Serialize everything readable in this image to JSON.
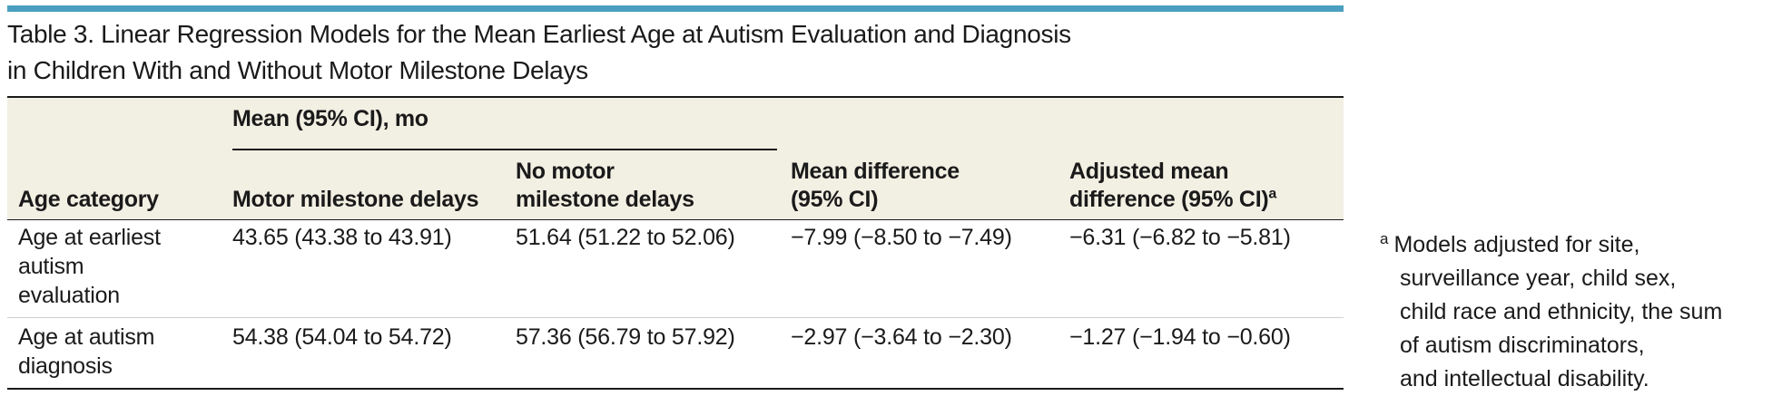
{
  "title_line1": "Table 3. Linear Regression Models for the Mean Earliest Age at Autism Evaluation and Diagnosis",
  "title_line2": "in Children With and Without Motor Milestone Delays",
  "header": {
    "age_category": "Age category",
    "group_label": "Mean (95% CI), mo",
    "motor_delays": "Motor milestone delays",
    "no_motor_line1": "No motor",
    "no_motor_line2": "milestone delays",
    "mean_diff_line1": "Mean difference",
    "mean_diff_line2": "(95% CI)",
    "adj_line1": "Adjusted mean",
    "adj_line2": "difference (95% CI)",
    "adj_mark": "a"
  },
  "rows": [
    {
      "label_lines": [
        "Age at earliest",
        "autism",
        "evaluation"
      ],
      "motor_delays": "43.65 (43.38 to 43.91)",
      "no_motor_delays": "51.64 (51.22 to 52.06)",
      "mean_difference": "−7.99 (−8.50 to −7.49)",
      "adjusted_mean_difference": "−6.31 (−6.82 to −5.81)"
    },
    {
      "label_lines": [
        "Age at autism",
        "diagnosis"
      ],
      "motor_delays": "54.38 (54.04 to 54.72)",
      "no_motor_delays": "57.36 (56.79 to 57.92)",
      "mean_difference": "−2.97 (−3.64 to −2.30)",
      "adjusted_mean_difference": "−1.27 (−1.94 to −0.60)"
    }
  ],
  "footnote": {
    "mark": "a",
    "lines": [
      "Models adjusted for site,",
      "surveillance year, child sex,",
      "child race and ethnicity, the sum",
      "of autism discriminators,",
      "and intellectual disability."
    ]
  },
  "colors": {
    "top_rule": "#4a9fc0",
    "header_bg": "#f2efe3",
    "text": "#1a1a1a"
  }
}
